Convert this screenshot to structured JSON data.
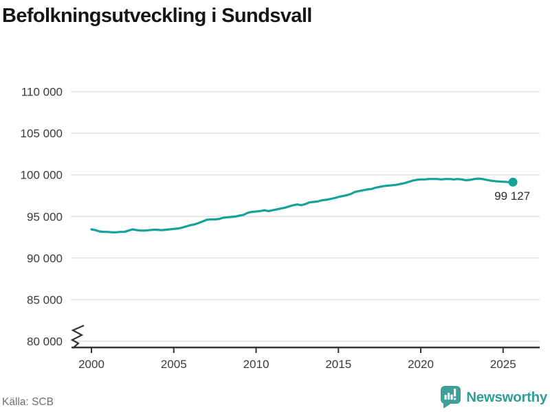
{
  "title": "Befolkningsutveckling i Sundsvall",
  "source": "Källa: SCB",
  "branding": {
    "name": "Newsworthy",
    "logo_icon": "bar-chart-speech-bubble-icon",
    "mark_color": "#3ea099",
    "text_color": "#2f9e96"
  },
  "colors": {
    "line": "#14a299",
    "grid": "#e0e0e0",
    "axis": "#333333",
    "tick_label": "#3a3a3a",
    "end_label": "#2b2b2b",
    "background": "#ffffff"
  },
  "chart_data": {
    "type": "line",
    "title": "Befolkningsutveckling i Sundsvall",
    "xlabel": "",
    "ylabel": "",
    "grid": "horizontal",
    "legend": "none",
    "axis_break_at_bottom": true,
    "ylim": [
      80000,
      110000
    ],
    "yticks": [
      80000,
      85000,
      90000,
      95000,
      100000,
      105000,
      110000
    ],
    "ytick_labels": [
      "80 000",
      "85 000",
      "90 000",
      "95 000",
      "100 000",
      "105 000",
      "110 000"
    ],
    "xticks": [
      2000,
      2005,
      2010,
      2015,
      2020,
      2025
    ],
    "xtick_labels": [
      "2000",
      "2005",
      "2010",
      "2015",
      "2020",
      "2025"
    ],
    "end_point_label": "99 127",
    "end_value": 99127,
    "x": [
      2000,
      2000.25,
      2000.5,
      2000.75,
      2001,
      2001.25,
      2001.5,
      2001.75,
      2002,
      2002.25,
      2002.5,
      2002.75,
      2003,
      2003.25,
      2003.5,
      2003.75,
      2004,
      2004.25,
      2004.5,
      2004.75,
      2005,
      2005.25,
      2005.5,
      2005.75,
      2006,
      2006.25,
      2006.5,
      2006.75,
      2007,
      2007.25,
      2007.5,
      2007.75,
      2008,
      2008.25,
      2008.5,
      2008.75,
      2009,
      2009.25,
      2009.5,
      2009.75,
      2010,
      2010.25,
      2010.5,
      2010.75,
      2011,
      2011.25,
      2011.5,
      2011.75,
      2012,
      2012.25,
      2012.5,
      2012.75,
      2013,
      2013.25,
      2013.5,
      2013.75,
      2014,
      2014.25,
      2014.5,
      2014.75,
      2015,
      2015.25,
      2015.5,
      2015.75,
      2016,
      2016.25,
      2016.5,
      2016.75,
      2017,
      2017.25,
      2017.5,
      2017.75,
      2018,
      2018.25,
      2018.5,
      2018.75,
      2019,
      2019.25,
      2019.5,
      2019.75,
      2020,
      2020.25,
      2020.5,
      2020.75,
      2021,
      2021.25,
      2021.5,
      2021.75,
      2022,
      2022.25,
      2022.5,
      2022.75,
      2023,
      2023.25,
      2023.5,
      2023.75,
      2024,
      2024.25,
      2024.5,
      2024.75,
      2025,
      2025.25,
      2025.6
    ],
    "values": [
      93450,
      93350,
      93200,
      93150,
      93150,
      93100,
      93100,
      93150,
      93150,
      93300,
      93450,
      93350,
      93300,
      93300,
      93350,
      93400,
      93400,
      93350,
      93400,
      93450,
      93500,
      93550,
      93650,
      93800,
      93950,
      94050,
      94200,
      94400,
      94600,
      94650,
      94650,
      94700,
      94850,
      94900,
      94950,
      95000,
      95100,
      95200,
      95450,
      95550,
      95600,
      95650,
      95750,
      95650,
      95750,
      95850,
      95950,
      96050,
      96200,
      96350,
      96450,
      96350,
      96500,
      96700,
      96750,
      96800,
      96950,
      97000,
      97100,
      97200,
      97350,
      97450,
      97550,
      97700,
      97950,
      98050,
      98150,
      98250,
      98300,
      98450,
      98550,
      98650,
      98700,
      98750,
      98800,
      98900,
      99000,
      99150,
      99300,
      99400,
      99450,
      99450,
      99500,
      99500,
      99500,
      99450,
      99500,
      99500,
      99450,
      99500,
      99450,
      99350,
      99400,
      99500,
      99550,
      99500,
      99400,
      99300,
      99250,
      99200,
      99170,
      99150,
      99127
    ]
  }
}
